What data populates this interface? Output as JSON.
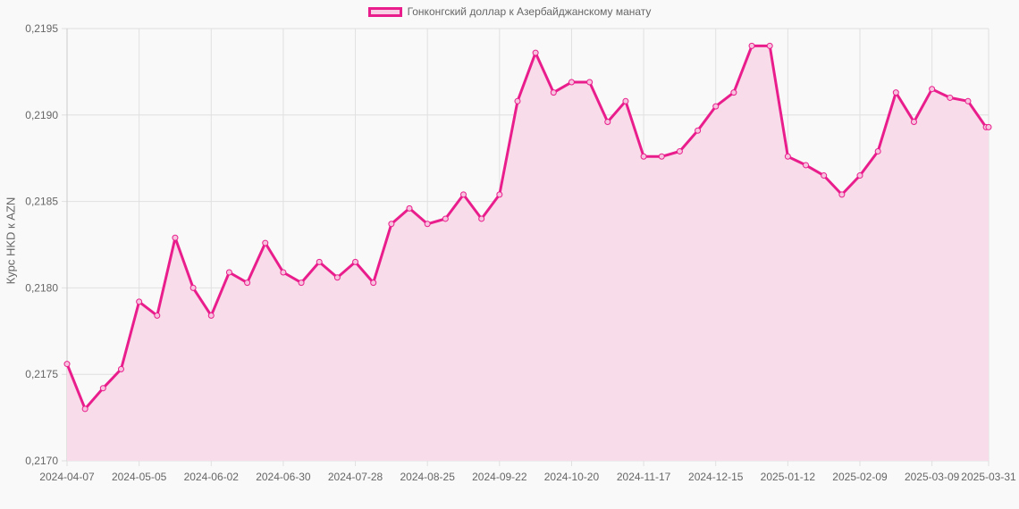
{
  "legend": {
    "label": "Гонконгский доллар к Азербайджанскому манату"
  },
  "colors": {
    "line": "#e91e8c",
    "fill": "#f8dcea",
    "grid": "#e0e0e0",
    "text": "#666666",
    "background": "#f9f9f9"
  },
  "chart_data": {
    "type": "area",
    "title": "",
    "legend": [
      "Гонконгский доллар к Азербайджанскому манату"
    ],
    "legend_position": "top",
    "xlabel": "",
    "ylabel": "Курс HKD к AZN",
    "ylim": [
      0.217,
      0.2195
    ],
    "y_ticks": [
      "0,2170",
      "0,2175",
      "0,2180",
      "0,2185",
      "0,2190",
      "0,2195"
    ],
    "x_tick_labels": [
      "2024-04-07",
      "2024-05-05",
      "2024-06-02",
      "2024-06-30",
      "2024-07-28",
      "2024-08-25",
      "2024-09-22",
      "2024-10-20",
      "2024-11-17",
      "2024-12-15",
      "2025-01-12",
      "2025-02-09",
      "2025-03-09",
      "2025-03-31"
    ],
    "grid": true,
    "x": [
      "2024-04-07",
      "2024-04-14",
      "2024-04-21",
      "2024-04-28",
      "2024-05-05",
      "2024-05-12",
      "2024-05-19",
      "2024-05-26",
      "2024-06-02",
      "2024-06-09",
      "2024-06-16",
      "2024-06-23",
      "2024-06-30",
      "2024-07-07",
      "2024-07-14",
      "2024-07-21",
      "2024-07-28",
      "2024-08-04",
      "2024-08-11",
      "2024-08-18",
      "2024-08-25",
      "2024-09-01",
      "2024-09-08",
      "2024-09-15",
      "2024-09-22",
      "2024-09-29",
      "2024-10-06",
      "2024-10-13",
      "2024-10-20",
      "2024-10-27",
      "2024-11-03",
      "2024-11-10",
      "2024-11-17",
      "2024-11-24",
      "2024-12-01",
      "2024-12-08",
      "2024-12-15",
      "2024-12-22",
      "2024-12-29",
      "2025-01-05",
      "2025-01-12",
      "2025-01-19",
      "2025-01-26",
      "2025-02-02",
      "2025-02-09",
      "2025-02-16",
      "2025-02-23",
      "2025-03-02",
      "2025-03-09",
      "2025-03-16",
      "2025-03-23",
      "2025-03-30",
      "2025-03-31"
    ],
    "series": [
      {
        "name": "Гонконгский доллар к Азербайджанскому манату",
        "values": [
          0.21756,
          0.2173,
          0.21742,
          0.21753,
          0.21792,
          0.21784,
          0.21829,
          0.218,
          0.21784,
          0.21809,
          0.21803,
          0.21826,
          0.21809,
          0.21803,
          0.21815,
          0.21806,
          0.21815,
          0.21803,
          0.21837,
          0.21846,
          0.21837,
          0.2184,
          0.21854,
          0.2184,
          0.21854,
          0.21908,
          0.21936,
          0.21913,
          0.21919,
          0.21919,
          0.21896,
          0.21908,
          0.21876,
          0.21876,
          0.21879,
          0.21891,
          0.21905,
          0.21913,
          0.2194,
          0.2194,
          0.21876,
          0.21871,
          0.21865,
          0.21854,
          0.21865,
          0.21879,
          0.21913,
          0.21896,
          0.21915,
          0.2191,
          0.21908,
          0.21893,
          0.21893
        ]
      }
    ]
  }
}
